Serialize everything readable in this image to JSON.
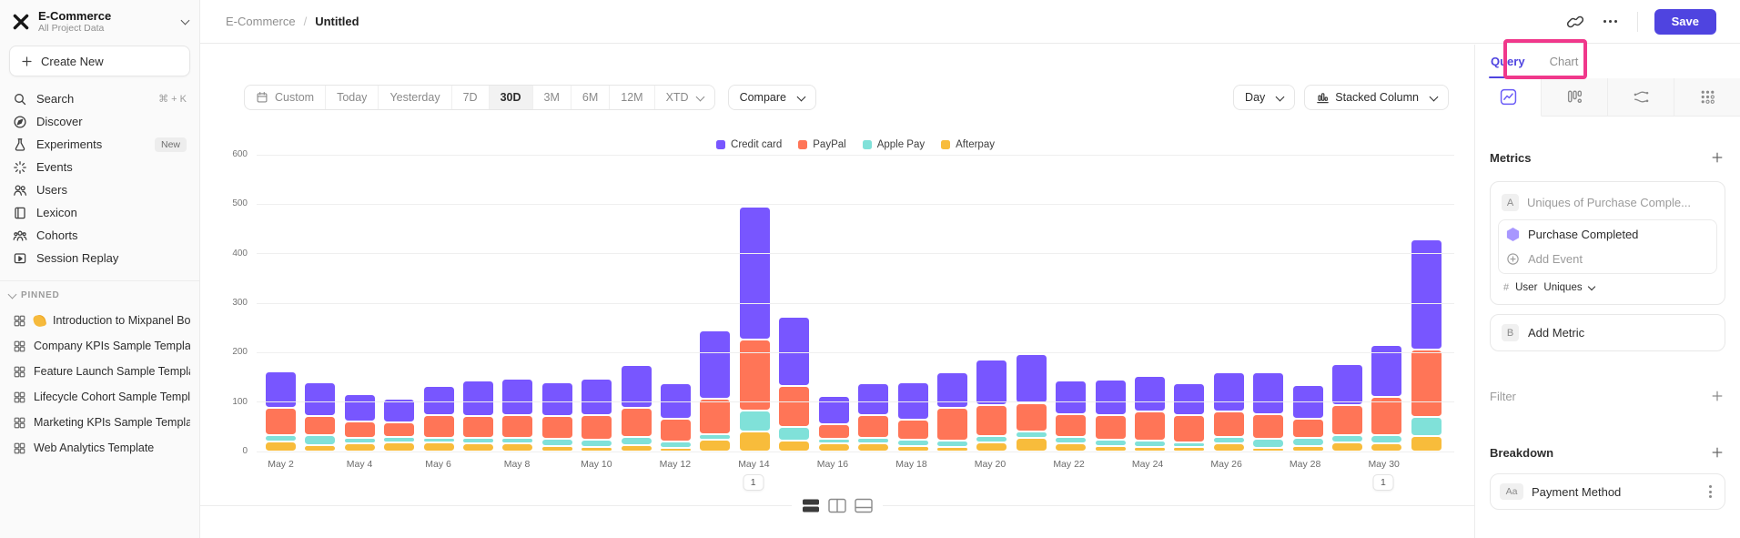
{
  "colors": {
    "accent": "#4F44E0",
    "highlight_box": "#F0388B",
    "sidebar_bg": "#FAFAFA"
  },
  "sidebar": {
    "project_name": "E-Commerce",
    "project_subtitle": "All Project Data",
    "create_new": "Create New",
    "nav": [
      {
        "icon": "search-icon",
        "label": "Search",
        "shortcut": "⌘ + K"
      },
      {
        "icon": "discover-icon",
        "label": "Discover"
      },
      {
        "icon": "experiments-icon",
        "label": "Experiments",
        "badge": "New"
      },
      {
        "icon": "events-icon",
        "label": "Events"
      },
      {
        "icon": "users-icon",
        "label": "Users"
      },
      {
        "icon": "lexicon-icon",
        "label": "Lexicon"
      },
      {
        "icon": "cohorts-icon",
        "label": "Cohorts"
      },
      {
        "icon": "session-replay-icon",
        "label": "Session Replay"
      }
    ],
    "pinned_header": "PINNED",
    "pinned": [
      {
        "icon": "board-icon",
        "emoji": "wave-emoji",
        "label": "Introduction to Mixpanel Board"
      },
      {
        "icon": "board-icon",
        "label": "Company KPIs Sample Template"
      },
      {
        "icon": "board-icon",
        "label": "Feature Launch Sample Template"
      },
      {
        "icon": "board-icon",
        "label": "Lifecycle Cohort Sample Template"
      },
      {
        "icon": "board-icon",
        "label": "Marketing KPIs Sample Template"
      },
      {
        "icon": "board-icon",
        "label": "Web Analytics Template"
      }
    ]
  },
  "topbar": {
    "breadcrumb_project": "E-Commerce",
    "breadcrumb_separator": "/",
    "breadcrumb_page": "Untitled",
    "save": "Save"
  },
  "toolbar": {
    "ranges": [
      {
        "label": "Custom",
        "icon": "calendar-icon"
      },
      {
        "label": "Today"
      },
      {
        "label": "Yesterday"
      },
      {
        "label": "7D"
      },
      {
        "label": "30D",
        "active": true
      },
      {
        "label": "3M"
      },
      {
        "label": "6M"
      },
      {
        "label": "12M"
      },
      {
        "label": "XTD",
        "chevron": true
      }
    ],
    "compare": "Compare",
    "granularity": "Day",
    "chart_type": "Stacked Column"
  },
  "right_panel": {
    "tab_query": "Query",
    "tab_chart": "Chart",
    "metrics_title": "Metrics",
    "metric_letter": "A",
    "metric_placeholder": "Uniques of Purchase Comple...",
    "event_name": "Purchase Completed",
    "add_event": "Add Event",
    "measure_hash": "#",
    "measure_entity": "User",
    "measure_type": "Uniques",
    "add_metric_letter": "B",
    "add_metric": "Add Metric",
    "filter_title": "Filter",
    "breakdown_title": "Breakdown",
    "breakdown_badge": "Aa",
    "breakdown_value": "Payment Method"
  },
  "chart_data": {
    "type": "bar",
    "stacked": true,
    "title": "",
    "xlabel": "",
    "ylabel": "",
    "x": [
      "May 2",
      "May 3",
      "May 4",
      "May 5",
      "May 6",
      "May 7",
      "May 8",
      "May 9",
      "May 10",
      "May 11",
      "May 12",
      "May 13",
      "May 14",
      "May 15",
      "May 16",
      "May 17",
      "May 18",
      "May 19",
      "May 20",
      "May 21",
      "May 22",
      "May 23",
      "May 24",
      "May 25",
      "May 26",
      "May 27",
      "May 28",
      "May 29",
      "May 30",
      "May 31"
    ],
    "x_tick_every": 2,
    "series": [
      {
        "name": "Credit card",
        "color": "#7856FF",
        "values": [
          69,
          66,
          53,
          45,
          55,
          68,
          69,
          65,
          69,
          83,
          68,
          134,
          264,
          136,
          52,
          61,
          71,
          68,
          89,
          95,
          64,
          69,
          69,
          61,
          75,
          80,
          65,
          80,
          101,
          219
        ]
      },
      {
        "name": "PayPal",
        "color": "#FF7557",
        "values": [
          52,
          34,
          29,
          25,
          43,
          40,
          43,
          43,
          47,
          55,
          43,
          68,
          140,
          79,
          27,
          42,
          38,
          63,
          58,
          53,
          43,
          46,
          56,
          50,
          48,
          47,
          35,
          56,
          74,
          133
        ]
      },
      {
        "name": "Apple Pay",
        "color": "#80E1D9",
        "values": [
          9,
          17,
          8,
          7,
          6,
          8,
          8,
          10,
          10,
          12,
          8,
          8,
          40,
          24,
          6,
          8,
          8,
          8,
          10,
          10,
          10,
          8,
          8,
          6,
          10,
          14,
          12,
          12,
          14,
          35
        ]
      },
      {
        "name": "Afterpay",
        "color": "#F8BC3B",
        "values": [
          17,
          9,
          12,
          15,
          14,
          12,
          12,
          8,
          6,
          10,
          4,
          20,
          36,
          18,
          12,
          12,
          8,
          6,
          14,
          24,
          12,
          8,
          6,
          6,
          12,
          4,
          8,
          14,
          12,
          28
        ]
      }
    ],
    "ylim": [
      0,
      600
    ],
    "yticks": [
      0,
      100,
      200,
      300,
      400,
      500,
      600
    ],
    "grid": true,
    "legend_position": "top",
    "annotations": [
      {
        "x": "May 14",
        "label": "1"
      },
      {
        "x": "May 30",
        "label": "1"
      }
    ]
  }
}
